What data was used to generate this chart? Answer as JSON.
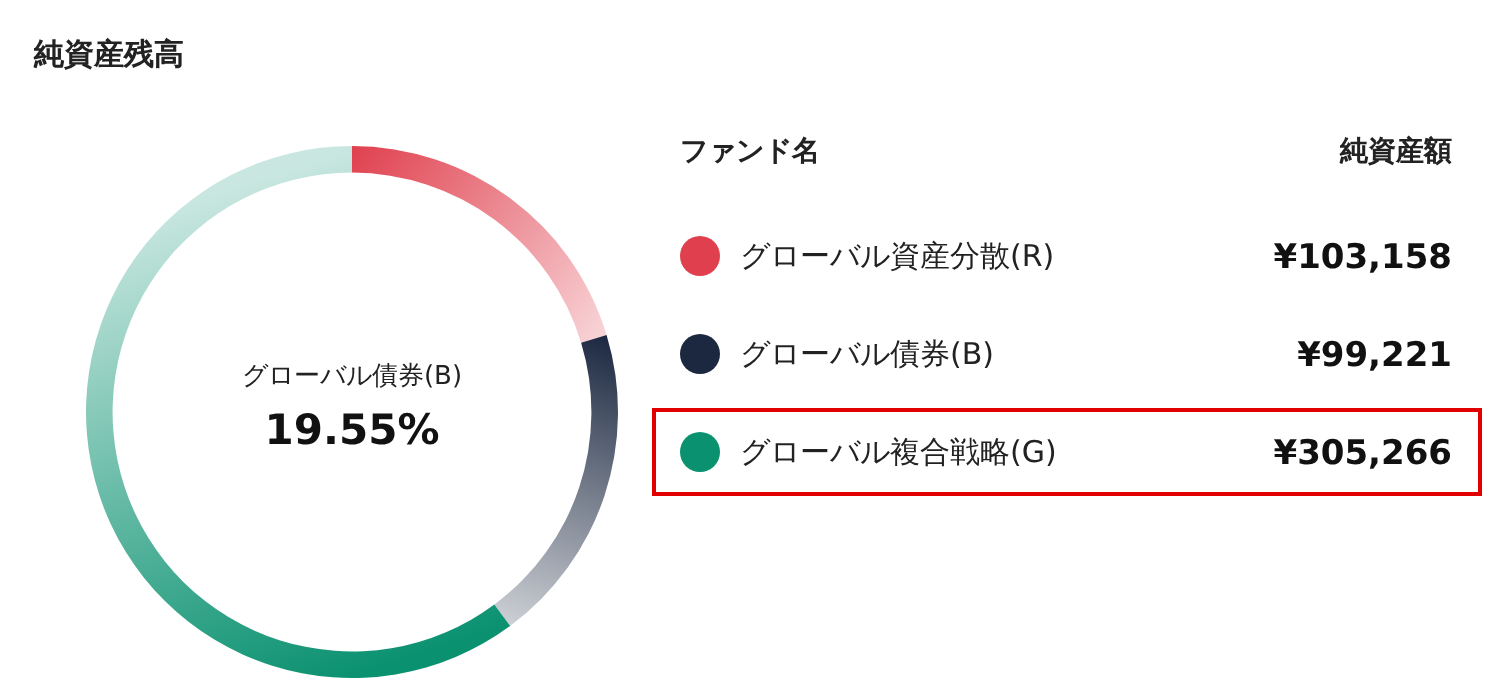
{
  "chart_data": {
    "type": "donut",
    "title": "純資産残高",
    "categories": [
      "グローバル資産分散(R)",
      "グローバル債券(B)",
      "グローバル複合戦略(G)"
    ],
    "values": [
      103158,
      99221,
      305266
    ],
    "colors": [
      "#e0404e",
      "#1b2840",
      "#0a9170"
    ],
    "value_labels": [
      "¥103,158",
      "¥99,221",
      "¥305,266"
    ],
    "legend": "right",
    "annotations": [
      "ファンド名",
      "純資産額",
      "グローバル債券(B)",
      "19.55%"
    ]
  }
}
